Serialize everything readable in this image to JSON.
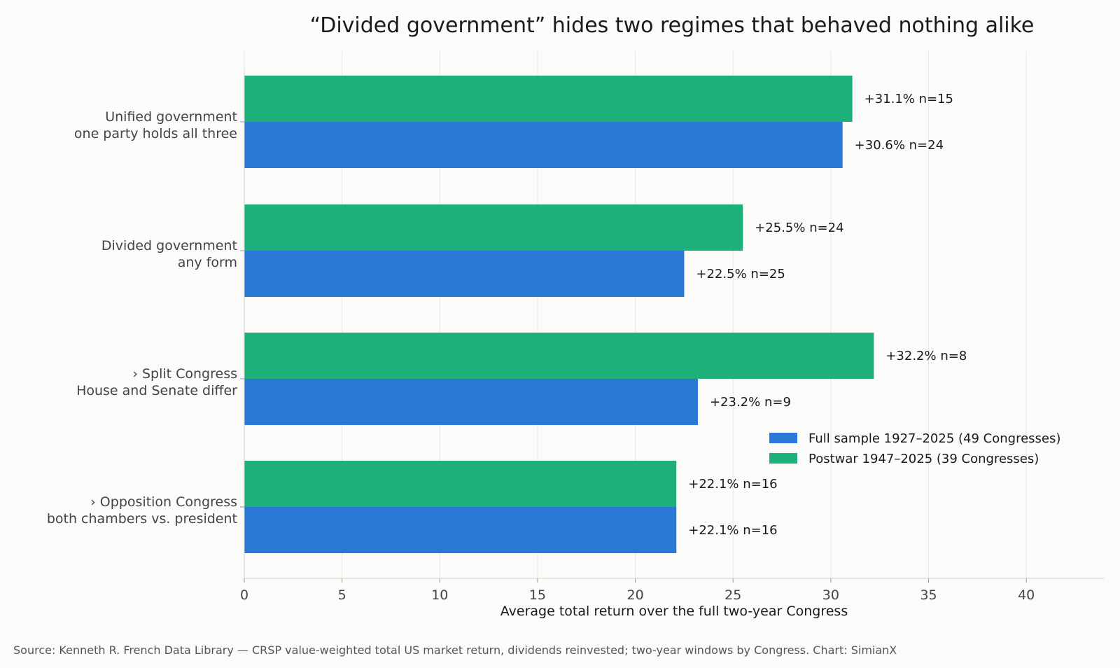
{
  "chart_data": {
    "type": "bar",
    "orientation": "horizontal",
    "title": "“Divided government” hides two regimes that behaved nothing alike",
    "xlabel": "Average total return over the full two-year Congress",
    "ylabel": "",
    "xlim": [
      0,
      44
    ],
    "xticks": [
      0,
      5,
      10,
      15,
      20,
      25,
      30,
      35,
      40
    ],
    "grid": "vertical",
    "legend_position": "right",
    "categories": [
      {
        "line1": "Unified government",
        "line2": "one party holds all three"
      },
      {
        "line1": "Divided government",
        "line2": "any form"
      },
      {
        "line1": "› Split Congress",
        "line2": "House and Senate differ"
      },
      {
        "line1": "› Opposition Congress",
        "line2": "both chambers vs. president"
      }
    ],
    "series": [
      {
        "name": "Full sample 1927–2025  (49 Congresses)",
        "color": "#2a78d6",
        "values": [
          30.6,
          22.5,
          23.2,
          22.1
        ],
        "labels": [
          "+30.6%   n=24",
          "+22.5%   n=25",
          "+23.2%   n=9",
          "+22.1%   n=16"
        ]
      },
      {
        "name": "Postwar 1947–2025  (39 Congresses)",
        "color": "#1db07a",
        "values": [
          31.1,
          25.5,
          32.2,
          22.1
        ],
        "labels": [
          "+31.1%   n=15",
          "+25.5%   n=24",
          "+32.2%   n=8",
          "+22.1%   n=16"
        ]
      }
    ]
  },
  "source_note": "Source: Kenneth R. French Data Library — CRSP value-weighted total US market return, dividends reinvested; two-year windows by Congress.  Chart: SimianX"
}
